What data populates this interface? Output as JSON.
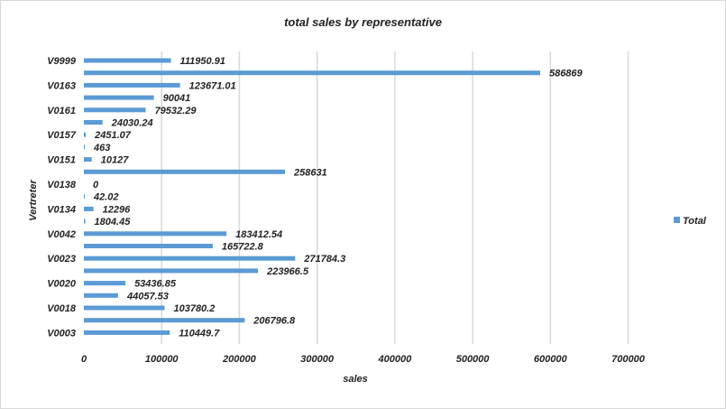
{
  "chart_data": {
    "type": "bar",
    "orientation": "horizontal",
    "title": "total sales by representative",
    "xlabel": "sales",
    "ylabel": "Vertreter",
    "xlim": [
      0,
      700000
    ],
    "x_ticks": [
      0,
      100000,
      200000,
      300000,
      400000,
      500000,
      600000,
      700000
    ],
    "x_tick_labels": [
      "0",
      "100000",
      "200000",
      "300000",
      "400000",
      "500000",
      "600000",
      "700000"
    ],
    "grid": "vertical",
    "legend_position": "right",
    "categories": [
      "V9999",
      "",
      "V0163",
      "",
      "V0161",
      "",
      "V0157",
      "",
      "V0151",
      "",
      "V0138",
      "",
      "V0134",
      "",
      "V0042",
      "",
      "V0023",
      "",
      "V0020",
      "",
      "V0018",
      "",
      "V0003"
    ],
    "series": [
      {
        "name": "Total",
        "color": "#5b9bd5",
        "values": [
          111950.91,
          586869,
          123671.01,
          90041,
          79532.29,
          24030.24,
          2451.07,
          463,
          10127,
          258631,
          0,
          42.02,
          12296,
          1804.45,
          183412.54,
          165722.8,
          271784.3,
          223966.5,
          53436.85,
          44057.53,
          103780.2,
          206796.8,
          110449.7
        ],
        "labels": [
          "111950.91",
          "586869",
          "123671.01",
          "90041",
          "79532.29",
          "24030.24",
          "2451.07",
          "463",
          "10127",
          "258631",
          "0",
          "42.02",
          "12296",
          "1804.45",
          "183412.54",
          "165722.8",
          "271784.3",
          "223966.5",
          "53436.85",
          "44057.53",
          "103780.2",
          "206796.8",
          "110449.7"
        ]
      }
    ]
  }
}
